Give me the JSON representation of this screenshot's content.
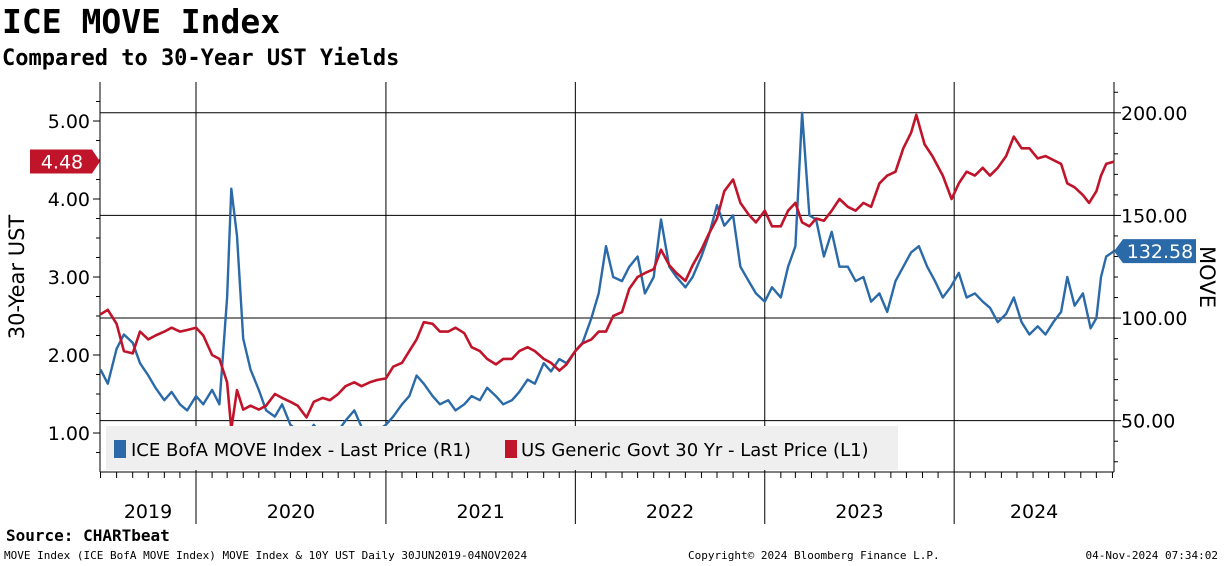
{
  "header": {
    "title": "ICE MOVE Index",
    "subtitle": "Compared to 30-Year UST Yields"
  },
  "footer": {
    "source": "Source: CHARTbeat",
    "description": "MOVE Index (ICE BofA MOVE Index) MOVE Index & 10Y UST  Daily 30JUN2019-04NOV2024",
    "copyright": "Copyright© 2024 Bloomberg Finance L.P.",
    "timestamp": "04-Nov-2024 07:34:02"
  },
  "colors": {
    "move": "#2b6aa8",
    "ust": "#c0142b",
    "legend_bg": "#efefef"
  },
  "chart_data": {
    "type": "line",
    "x_axis": {
      "labels": [
        "2019",
        "2020",
        "2021",
        "2022",
        "2023",
        "2024"
      ],
      "range": [
        "2019-06-30",
        "2024-11-04"
      ]
    },
    "y_left": {
      "label": "30-Year UST",
      "ticks": [
        "1.00",
        "2.00",
        "3.00",
        "4.00",
        "5.00"
      ],
      "range": [
        0.5,
        5.5
      ]
    },
    "y_right": {
      "label": "MOVE",
      "ticks": [
        "50.00",
        "100.00",
        "150.00",
        "200.00"
      ],
      "range": [
        25,
        215
      ]
    },
    "grid": true,
    "legend_position": "bottom-left",
    "series": [
      {
        "name": "ICE BofA MOVE Index - Last Price (R1)",
        "axis": "right",
        "last_value_label": "132.58",
        "points": [
          [
            "2019-07-01",
            75
          ],
          [
            "2019-07-15",
            68
          ],
          [
            "2019-08-01",
            85
          ],
          [
            "2019-08-15",
            92
          ],
          [
            "2019-09-01",
            88
          ],
          [
            "2019-09-15",
            78
          ],
          [
            "2019-10-01",
            72
          ],
          [
            "2019-10-15",
            66
          ],
          [
            "2019-11-01",
            60
          ],
          [
            "2019-11-15",
            64
          ],
          [
            "2019-12-01",
            58
          ],
          [
            "2019-12-15",
            55
          ],
          [
            "2020-01-01",
            62
          ],
          [
            "2020-01-15",
            58
          ],
          [
            "2020-02-01",
            65
          ],
          [
            "2020-02-15",
            58
          ],
          [
            "2020-03-01",
            110
          ],
          [
            "2020-03-09",
            163
          ],
          [
            "2020-03-20",
            140
          ],
          [
            "2020-04-01",
            90
          ],
          [
            "2020-04-15",
            75
          ],
          [
            "2020-05-01",
            65
          ],
          [
            "2020-05-15",
            55
          ],
          [
            "2020-06-01",
            52
          ],
          [
            "2020-06-15",
            58
          ],
          [
            "2020-07-01",
            48
          ],
          [
            "2020-07-15",
            45
          ],
          [
            "2020-08-01",
            43
          ],
          [
            "2020-08-15",
            48
          ],
          [
            "2020-09-01",
            42
          ],
          [
            "2020-09-15",
            40
          ],
          [
            "2020-10-01",
            45
          ],
          [
            "2020-10-15",
            50
          ],
          [
            "2020-11-01",
            55
          ],
          [
            "2020-11-15",
            47
          ],
          [
            "2020-12-01",
            44
          ],
          [
            "2020-12-15",
            45
          ],
          [
            "2021-01-01",
            48
          ],
          [
            "2021-01-15",
            52
          ],
          [
            "2021-02-01",
            58
          ],
          [
            "2021-02-15",
            62
          ],
          [
            "2021-03-01",
            72
          ],
          [
            "2021-03-15",
            68
          ],
          [
            "2021-04-01",
            62
          ],
          [
            "2021-04-15",
            58
          ],
          [
            "2021-05-01",
            60
          ],
          [
            "2021-05-15",
            55
          ],
          [
            "2021-06-01",
            58
          ],
          [
            "2021-06-15",
            62
          ],
          [
            "2021-07-01",
            60
          ],
          [
            "2021-07-15",
            66
          ],
          [
            "2021-08-01",
            62
          ],
          [
            "2021-08-15",
            58
          ],
          [
            "2021-09-01",
            60
          ],
          [
            "2021-09-15",
            64
          ],
          [
            "2021-10-01",
            70
          ],
          [
            "2021-10-15",
            68
          ],
          [
            "2021-11-01",
            78
          ],
          [
            "2021-11-15",
            74
          ],
          [
            "2021-12-01",
            80
          ],
          [
            "2021-12-15",
            78
          ],
          [
            "2022-01-01",
            84
          ],
          [
            "2022-01-15",
            88
          ],
          [
            "2022-02-01",
            100
          ],
          [
            "2022-02-15",
            112
          ],
          [
            "2022-03-01",
            135
          ],
          [
            "2022-03-15",
            120
          ],
          [
            "2022-04-01",
            118
          ],
          [
            "2022-04-15",
            125
          ],
          [
            "2022-05-01",
            130
          ],
          [
            "2022-05-15",
            112
          ],
          [
            "2022-06-01",
            120
          ],
          [
            "2022-06-15",
            148
          ],
          [
            "2022-07-01",
            125
          ],
          [
            "2022-07-15",
            120
          ],
          [
            "2022-08-01",
            115
          ],
          [
            "2022-08-15",
            120
          ],
          [
            "2022-09-01",
            130
          ],
          [
            "2022-09-15",
            140
          ],
          [
            "2022-10-01",
            155
          ],
          [
            "2022-10-15",
            145
          ],
          [
            "2022-11-01",
            150
          ],
          [
            "2022-11-15",
            125
          ],
          [
            "2022-12-01",
            118
          ],
          [
            "2022-12-15",
            112
          ],
          [
            "2023-01-01",
            108
          ],
          [
            "2023-01-15",
            115
          ],
          [
            "2023-02-01",
            110
          ],
          [
            "2023-02-15",
            125
          ],
          [
            "2023-03-01",
            135
          ],
          [
            "2023-03-14",
            200
          ],
          [
            "2023-03-28",
            150
          ],
          [
            "2023-04-10",
            148
          ],
          [
            "2023-04-25",
            130
          ],
          [
            "2023-05-10",
            142
          ],
          [
            "2023-05-25",
            125
          ],
          [
            "2023-06-10",
            125
          ],
          [
            "2023-06-25",
            118
          ],
          [
            "2023-07-10",
            120
          ],
          [
            "2023-07-25",
            108
          ],
          [
            "2023-08-10",
            112
          ],
          [
            "2023-08-25",
            103
          ],
          [
            "2023-09-10",
            118
          ],
          [
            "2023-09-25",
            125
          ],
          [
            "2023-10-10",
            132
          ],
          [
            "2023-10-25",
            135
          ],
          [
            "2023-11-10",
            125
          ],
          [
            "2023-11-25",
            118
          ],
          [
            "2023-12-10",
            110
          ],
          [
            "2023-12-25",
            115
          ],
          [
            "2024-01-10",
            122
          ],
          [
            "2024-01-25",
            110
          ],
          [
            "2024-02-10",
            112
          ],
          [
            "2024-02-25",
            108
          ],
          [
            "2024-03-10",
            105
          ],
          [
            "2024-03-25",
            98
          ],
          [
            "2024-04-10",
            102
          ],
          [
            "2024-04-25",
            110
          ],
          [
            "2024-05-10",
            98
          ],
          [
            "2024-05-25",
            92
          ],
          [
            "2024-06-10",
            96
          ],
          [
            "2024-06-25",
            92
          ],
          [
            "2024-07-10",
            98
          ],
          [
            "2024-07-25",
            103
          ],
          [
            "2024-08-06",
            120
          ],
          [
            "2024-08-20",
            106
          ],
          [
            "2024-09-05",
            112
          ],
          [
            "2024-09-20",
            95
          ],
          [
            "2024-10-01",
            100
          ],
          [
            "2024-10-10",
            120
          ],
          [
            "2024-10-20",
            130
          ],
          [
            "2024-11-04",
            132.58
          ]
        ]
      },
      {
        "name": "US Generic Govt 30 Yr - Last Price (L1)",
        "axis": "left",
        "last_value_label": "4.48",
        "points": [
          [
            "2019-07-01",
            2.52
          ],
          [
            "2019-07-15",
            2.58
          ],
          [
            "2019-08-01",
            2.4
          ],
          [
            "2019-08-15",
            2.05
          ],
          [
            "2019-09-01",
            2.02
          ],
          [
            "2019-09-15",
            2.3
          ],
          [
            "2019-10-01",
            2.2
          ],
          [
            "2019-10-15",
            2.25
          ],
          [
            "2019-11-01",
            2.3
          ],
          [
            "2019-11-15",
            2.35
          ],
          [
            "2019-12-01",
            2.3
          ],
          [
            "2019-12-15",
            2.32
          ],
          [
            "2020-01-01",
            2.35
          ],
          [
            "2020-01-15",
            2.25
          ],
          [
            "2020-02-01",
            2.0
          ],
          [
            "2020-02-15",
            1.95
          ],
          [
            "2020-03-01",
            1.65
          ],
          [
            "2020-03-09",
            1.05
          ],
          [
            "2020-03-20",
            1.55
          ],
          [
            "2020-04-01",
            1.3
          ],
          [
            "2020-04-15",
            1.35
          ],
          [
            "2020-05-01",
            1.3
          ],
          [
            "2020-05-15",
            1.35
          ],
          [
            "2020-06-01",
            1.5
          ],
          [
            "2020-06-15",
            1.45
          ],
          [
            "2020-07-01",
            1.4
          ],
          [
            "2020-07-15",
            1.35
          ],
          [
            "2020-08-01",
            1.2
          ],
          [
            "2020-08-15",
            1.4
          ],
          [
            "2020-09-01",
            1.45
          ],
          [
            "2020-09-15",
            1.42
          ],
          [
            "2020-10-01",
            1.5
          ],
          [
            "2020-10-15",
            1.6
          ],
          [
            "2020-11-01",
            1.65
          ],
          [
            "2020-11-15",
            1.6
          ],
          [
            "2020-12-01",
            1.65
          ],
          [
            "2020-12-15",
            1.68
          ],
          [
            "2021-01-01",
            1.7
          ],
          [
            "2021-01-15",
            1.85
          ],
          [
            "2021-02-01",
            1.9
          ],
          [
            "2021-02-15",
            2.05
          ],
          [
            "2021-03-01",
            2.2
          ],
          [
            "2021-03-15",
            2.42
          ],
          [
            "2021-04-01",
            2.4
          ],
          [
            "2021-04-15",
            2.3
          ],
          [
            "2021-05-01",
            2.3
          ],
          [
            "2021-05-15",
            2.35
          ],
          [
            "2021-06-01",
            2.28
          ],
          [
            "2021-06-15",
            2.1
          ],
          [
            "2021-07-01",
            2.05
          ],
          [
            "2021-07-15",
            1.95
          ],
          [
            "2021-08-01",
            1.88
          ],
          [
            "2021-08-15",
            1.95
          ],
          [
            "2021-09-01",
            1.95
          ],
          [
            "2021-09-15",
            2.05
          ],
          [
            "2021-10-01",
            2.1
          ],
          [
            "2021-10-15",
            2.05
          ],
          [
            "2021-11-01",
            1.95
          ],
          [
            "2021-11-15",
            1.9
          ],
          [
            "2021-12-01",
            1.8
          ],
          [
            "2021-12-15",
            1.88
          ],
          [
            "2022-01-01",
            2.05
          ],
          [
            "2022-01-15",
            2.15
          ],
          [
            "2022-02-01",
            2.2
          ],
          [
            "2022-02-15",
            2.3
          ],
          [
            "2022-03-01",
            2.3
          ],
          [
            "2022-03-15",
            2.5
          ],
          [
            "2022-04-01",
            2.55
          ],
          [
            "2022-04-15",
            2.85
          ],
          [
            "2022-05-01",
            3.0
          ],
          [
            "2022-05-15",
            3.05
          ],
          [
            "2022-06-01",
            3.1
          ],
          [
            "2022-06-15",
            3.35
          ],
          [
            "2022-07-01",
            3.15
          ],
          [
            "2022-07-15",
            3.05
          ],
          [
            "2022-08-01",
            2.95
          ],
          [
            "2022-08-15",
            3.15
          ],
          [
            "2022-09-01",
            3.35
          ],
          [
            "2022-09-15",
            3.55
          ],
          [
            "2022-10-01",
            3.75
          ],
          [
            "2022-10-15",
            4.1
          ],
          [
            "2022-11-01",
            4.25
          ],
          [
            "2022-11-15",
            3.95
          ],
          [
            "2022-12-01",
            3.8
          ],
          [
            "2022-12-15",
            3.7
          ],
          [
            "2023-01-01",
            3.85
          ],
          [
            "2023-01-15",
            3.65
          ],
          [
            "2023-02-01",
            3.65
          ],
          [
            "2023-02-15",
            3.85
          ],
          [
            "2023-03-01",
            3.95
          ],
          [
            "2023-03-14",
            3.7
          ],
          [
            "2023-03-28",
            3.65
          ],
          [
            "2023-04-10",
            3.75
          ],
          [
            "2023-04-25",
            3.72
          ],
          [
            "2023-05-10",
            3.85
          ],
          [
            "2023-05-25",
            4.0
          ],
          [
            "2023-06-10",
            3.9
          ],
          [
            "2023-06-25",
            3.85
          ],
          [
            "2023-07-10",
            3.95
          ],
          [
            "2023-07-25",
            3.9
          ],
          [
            "2023-08-10",
            4.2
          ],
          [
            "2023-08-25",
            4.3
          ],
          [
            "2023-09-10",
            4.35
          ],
          [
            "2023-09-25",
            4.65
          ],
          [
            "2023-10-10",
            4.85
          ],
          [
            "2023-10-20",
            5.08
          ],
          [
            "2023-11-05",
            4.7
          ],
          [
            "2023-11-20",
            4.55
          ],
          [
            "2023-12-10",
            4.3
          ],
          [
            "2023-12-27",
            4.0
          ],
          [
            "2024-01-10",
            4.2
          ],
          [
            "2024-01-25",
            4.35
          ],
          [
            "2024-02-10",
            4.3
          ],
          [
            "2024-02-25",
            4.4
          ],
          [
            "2024-03-10",
            4.3
          ],
          [
            "2024-03-25",
            4.4
          ],
          [
            "2024-04-10",
            4.55
          ],
          [
            "2024-04-25",
            4.8
          ],
          [
            "2024-05-10",
            4.65
          ],
          [
            "2024-05-25",
            4.65
          ],
          [
            "2024-06-10",
            4.52
          ],
          [
            "2024-06-25",
            4.55
          ],
          [
            "2024-07-10",
            4.5
          ],
          [
            "2024-07-25",
            4.45
          ],
          [
            "2024-08-06",
            4.2
          ],
          [
            "2024-08-20",
            4.15
          ],
          [
            "2024-09-05",
            4.05
          ],
          [
            "2024-09-17",
            3.95
          ],
          [
            "2024-10-01",
            4.1
          ],
          [
            "2024-10-10",
            4.3
          ],
          [
            "2024-10-20",
            4.45
          ],
          [
            "2024-11-04",
            4.48
          ]
        ]
      }
    ]
  }
}
